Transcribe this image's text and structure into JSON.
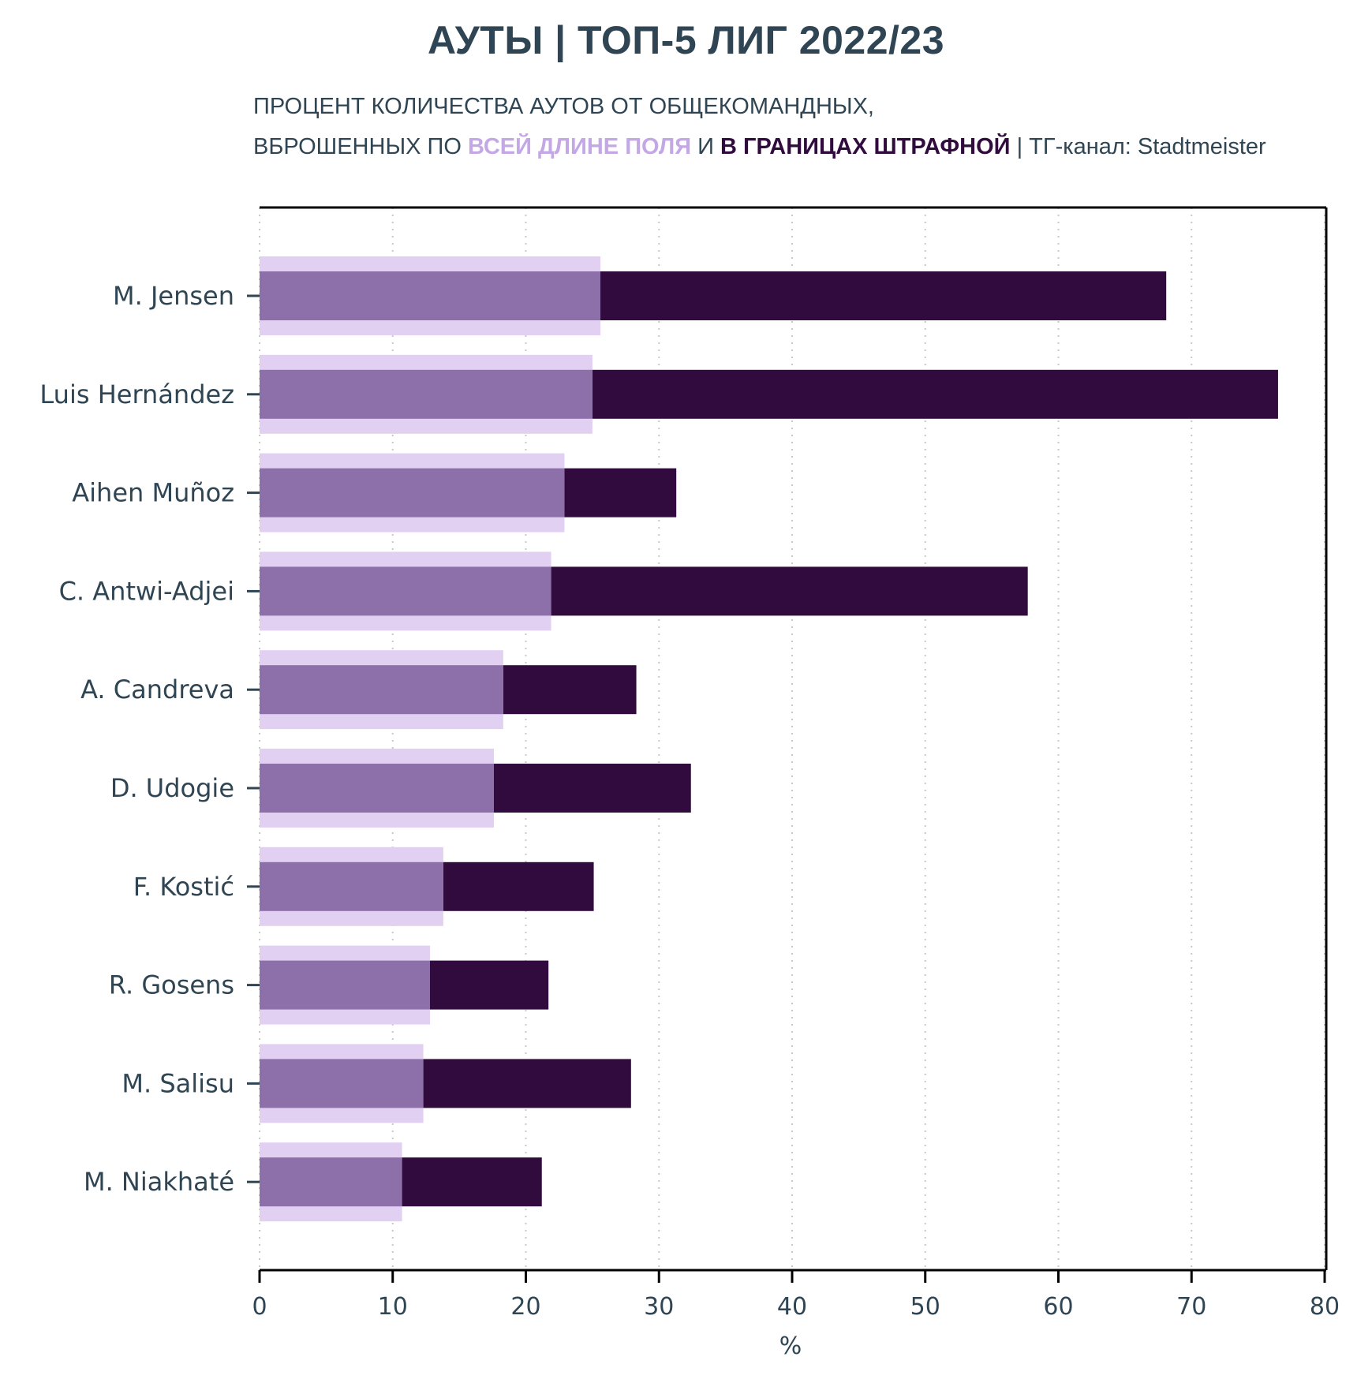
{
  "title": "АУТЫ | ТОП-5 ЛИГ 2022/23",
  "subtitle": {
    "line1": "ПРОЦЕНТ КОЛИЧЕСТВА АУТОВ ОТ ОБЩЕКОМАНДНЫХ,",
    "line2_prefix": "ВБРОШЕННЫХ ПО ",
    "highlight_full": "ВСЕЙ ДЛИНЕ ПОЛЯ",
    "conjunction": " И ",
    "highlight_box": "В ГРАНИЦАХ ШТРАФНОЙ",
    "suffix": " | ТГ-канал: Stadtmeister"
  },
  "colors": {
    "full_length_light": "#e2d0f3",
    "full_length_mid": "#8d70a9",
    "penalty_box": "#320b3e",
    "text": "#2f4553",
    "grid": "#c8c8c8",
    "axis": "#000000"
  },
  "chart_data": {
    "type": "bar",
    "orientation": "horizontal",
    "categories": [
      "M. Jensen",
      "Luis Hernández",
      "Aihen Muñoz",
      "C. Antwi-Adjei",
      "A. Candreva",
      "D. Udogie",
      "F. Kostić",
      "R. Gosens",
      "M. Salisu",
      "M. Niakhaté"
    ],
    "series": [
      {
        "name": "ВСЕЙ ДЛИНЕ ПОЛЯ",
        "values": [
          25.6,
          25.0,
          22.9,
          21.9,
          18.3,
          17.6,
          13.8,
          12.8,
          12.3,
          10.7
        ]
      },
      {
        "name": "В ГРАНИЦАХ ШТРАФНОЙ",
        "values": [
          68.1,
          76.5,
          31.3,
          57.7,
          28.3,
          32.4,
          25.1,
          21.7,
          27.9,
          21.2
        ]
      }
    ],
    "xlabel": "%",
    "ylabel": "",
    "xlim": [
      0,
      80
    ],
    "xticks": [
      0,
      10,
      20,
      30,
      40,
      50,
      60,
      70,
      80
    ],
    "grid": "vertical dotted",
    "legend": "none"
  }
}
